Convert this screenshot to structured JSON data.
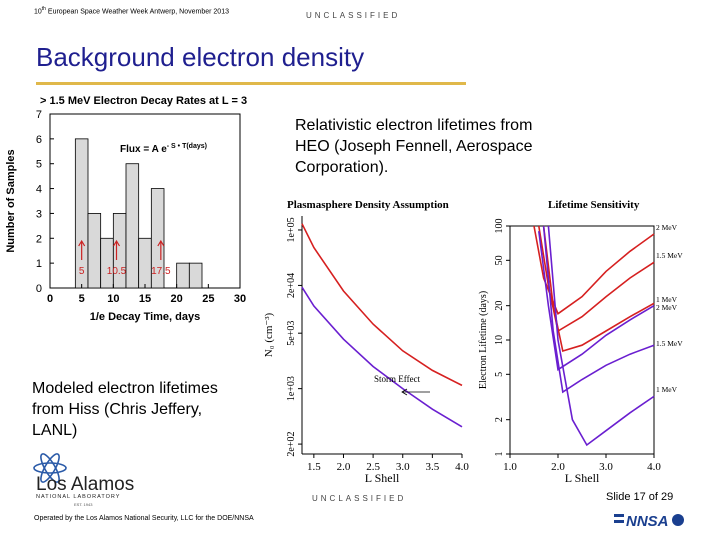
{
  "header": {
    "event_prefix": "10",
    "event_sup": "th",
    "event_rest": " European Space Weather Week Antwerp, November 2013",
    "classification": "UNCLASSIFIED"
  },
  "title": "Background electron density",
  "text": {
    "heo_line1": "Relativistic electron lifetimes from",
    "heo_line2": "HEO (Joseph Fennell, Aerospace",
    "heo_line3": "Corporation).",
    "hiss_line1": "Modeled electron lifetimes",
    "hiss_line2": "from Hiss (Chris Jeffery,",
    "hiss_line3": "LANL)"
  },
  "footer": {
    "classification": "UNCLASSIFIED",
    "slide": "Slide 17  of 29",
    "operated_by": "Operated by the Los Alamos National Security, LLC for the DOE/NNSA",
    "lanl_logo_text1": "Los Alamos",
    "lanl_logo_text2": "NATIONAL LABORATORY",
    "lanl_logo_text3": "EST. 1943",
    "nnsa_logo": "NNSA"
  },
  "chart_data": [
    {
      "type": "bar",
      "title": "> 1.5 MeV  Electron Decay Rates at L = 3",
      "formula_main": "Flux = A e",
      "formula_exp": "- S • T(days)",
      "xlabel": "1/e Decay Time, days",
      "ylabel": "Number of Samples",
      "xlim": [
        0,
        30
      ],
      "ylim": [
        0,
        7
      ],
      "xticks": [
        "0",
        "5",
        "10",
        "15",
        "20",
        "25",
        "30"
      ],
      "yticks": [
        "0",
        "1",
        "2",
        "3",
        "4",
        "5",
        "6",
        "7"
      ],
      "bins": [
        {
          "x0": 4,
          "x1": 6,
          "count": 6
        },
        {
          "x0": 6,
          "x1": 8,
          "count": 3
        },
        {
          "x0": 8,
          "x1": 10,
          "count": 2
        },
        {
          "x0": 10,
          "x1": 12,
          "count": 3
        },
        {
          "x0": 12,
          "x1": 14,
          "count": 5
        },
        {
          "x0": 14,
          "x1": 16,
          "count": 2
        },
        {
          "x0": 16,
          "x1": 18,
          "count": 4
        },
        {
          "x0": 18,
          "x1": 20,
          "count": 0
        },
        {
          "x0": 20,
          "x1": 22,
          "count": 1
        },
        {
          "x0": 22,
          "x1": 24,
          "count": 1
        }
      ],
      "annotations": [
        {
          "x": 5,
          "label": "5"
        },
        {
          "x": 10.5,
          "label": "10.5"
        },
        {
          "x": 17.5,
          "label": "17.5"
        }
      ],
      "colors": {
        "fill": "#d9d9d9",
        "marker": "#cc2222"
      }
    },
    {
      "type": "line",
      "title": "Plasmasphere Density Assumption",
      "xlabel": "L Shell",
      "ylabel": "N₀ (cm⁻³)",
      "xlim": [
        1.3,
        4.0
      ],
      "xticks": [
        "1.5",
        "2.0",
        "2.5",
        "3.0",
        "3.5",
        "4.0"
      ],
      "yticks": [
        "2e+02",
        "1e+03",
        "5e+03",
        "2e+04",
        "1e+05"
      ],
      "annotation": "Storm Effect",
      "series": [
        {
          "color": "#d62020",
          "x": [
            1.3,
            1.5,
            2.0,
            2.5,
            3.0,
            3.5,
            4.0
          ],
          "y": [
            120000,
            60000,
            17000,
            6500,
            3000,
            1700,
            1100
          ]
        },
        {
          "color": "#6a1fd0",
          "x": [
            1.3,
            1.5,
            2.0,
            2.5,
            3.0,
            3.5,
            4.0
          ],
          "y": [
            19000,
            11000,
            4200,
            1900,
            1000,
            550,
            330
          ]
        }
      ]
    },
    {
      "type": "line",
      "title": "Lifetime Sensitivity",
      "xlabel": "L Shell",
      "ylabel": "Electron Lifetime (days)",
      "xlim": [
        1.0,
        4.0
      ],
      "ylim": [
        1,
        100
      ],
      "xticks": [
        "1.0",
        "2.0",
        "3.0",
        "4.0"
      ],
      "yticks": [
        "1",
        "2",
        "5",
        "10",
        "20",
        "50",
        "100"
      ],
      "series": [
        {
          "name": "2 MeV",
          "color": "#d62020",
          "x": [
            1.5,
            1.7,
            2.0,
            2.5,
            3.0,
            3.5,
            4.0
          ],
          "y": [
            100,
            35,
            17,
            24,
            40,
            60,
            85
          ]
        },
        {
          "name": "1.5 MeV",
          "color": "#d62020",
          "x": [
            1.6,
            1.8,
            2.0,
            2.5,
            3.0,
            3.5,
            4.0
          ],
          "y": [
            100,
            30,
            12,
            16,
            24,
            35,
            48
          ]
        },
        {
          "name": "1 MeV",
          "color": "#d62020",
          "x": [
            1.7,
            1.9,
            2.1,
            2.5,
            3.0,
            3.5,
            4.0
          ],
          "y": [
            100,
            20,
            8,
            9,
            12,
            16,
            21
          ]
        },
        {
          "name": "2 MeV",
          "color": "#6a1fd0",
          "x": [
            1.6,
            1.8,
            2.0,
            2.5,
            3.0,
            3.5,
            4.0
          ],
          "y": [
            90,
            20,
            5.5,
            7.5,
            11,
            15,
            20
          ]
        },
        {
          "name": "1.5 MeV",
          "color": "#6a1fd0",
          "x": [
            1.7,
            1.9,
            2.1,
            2.5,
            3.0,
            3.5,
            4.0
          ],
          "y": [
            100,
            12,
            3.5,
            4.5,
            6,
            7.5,
            9
          ]
        },
        {
          "name": "1 MeV",
          "color": "#6a1fd0",
          "x": [
            1.8,
            2.0,
            2.3,
            2.6,
            3.0,
            3.5,
            4.0
          ],
          "y": [
            100,
            10,
            2,
            1.2,
            1.6,
            2.3,
            3.2
          ]
        }
      ],
      "legend_labels": [
        "2 MeV",
        "1.5 MeV",
        "1 MeV",
        "2 MeV",
        "1.5 MeV",
        "1 MeV"
      ]
    }
  ]
}
